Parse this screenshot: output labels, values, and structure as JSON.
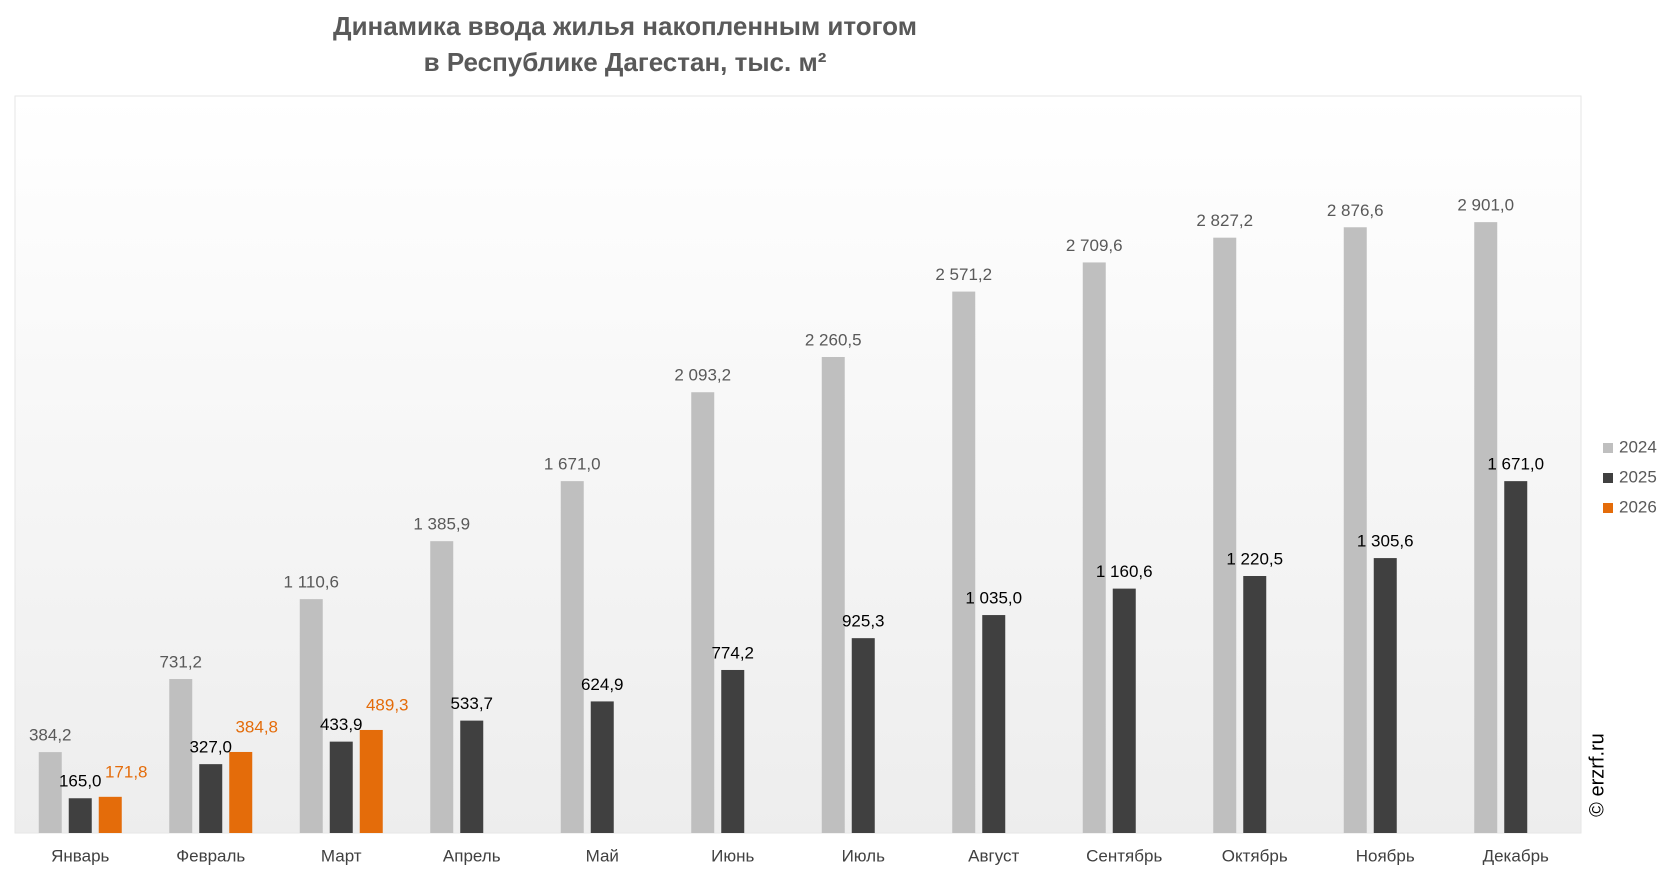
{
  "chart_data": {
    "type": "bar",
    "title": [
      "Динамика ввода жилья накопленным итогом",
      "в Республике Дагестан, тыс. м²"
    ],
    "watermark": "© erzrf.ru",
    "categories": [
      "Январь",
      "Февраль",
      "Март",
      "Апрель",
      "Май",
      "Июнь",
      "Июль",
      "Август",
      "Сентябрь",
      "Октябрь",
      "Ноябрь",
      "Декабрь"
    ],
    "ylim": [
      0,
      3500
    ],
    "legend": "right",
    "series": [
      {
        "name": "2024",
        "color": "#bfbfbf",
        "label_color": "#595959",
        "values": [
          384.2,
          731.2,
          1110.6,
          1385.9,
          1671.0,
          2093.2,
          2260.5,
          2571.2,
          2709.6,
          2827.2,
          2876.6,
          2901.0
        ],
        "value_labels": [
          "384,2",
          "731,2",
          "1 110,6",
          "1 385,9",
          "1 671,0",
          "2 093,2",
          "2 260,5",
          "2 571,2",
          "2 709,6",
          "2 827,2",
          "2 876,6",
          "2 901,0"
        ]
      },
      {
        "name": "2025",
        "color": "#404040",
        "label_color": "#000000",
        "values": [
          165.0,
          327.0,
          433.9,
          533.7,
          624.9,
          774.2,
          925.3,
          1035.0,
          1160.6,
          1220.5,
          1305.6,
          1671.0
        ],
        "value_labels": [
          "165,0",
          "327,0",
          "433,9",
          "533,7",
          "624,9",
          "774,2",
          "925,3",
          "1 035,0",
          "1 160,6",
          "1 220,5",
          "1 305,6",
          "1 671,0"
        ]
      },
      {
        "name": "2026",
        "color": "#e46c0a",
        "label_color": "#e46c0a",
        "values": [
          171.8,
          384.8,
          489.3,
          null,
          null,
          null,
          null,
          null,
          null,
          null,
          null,
          null
        ],
        "value_labels": [
          "171,8",
          "384,8",
          "489,3",
          null,
          null,
          null,
          null,
          null,
          null,
          null,
          null,
          null
        ]
      }
    ]
  }
}
